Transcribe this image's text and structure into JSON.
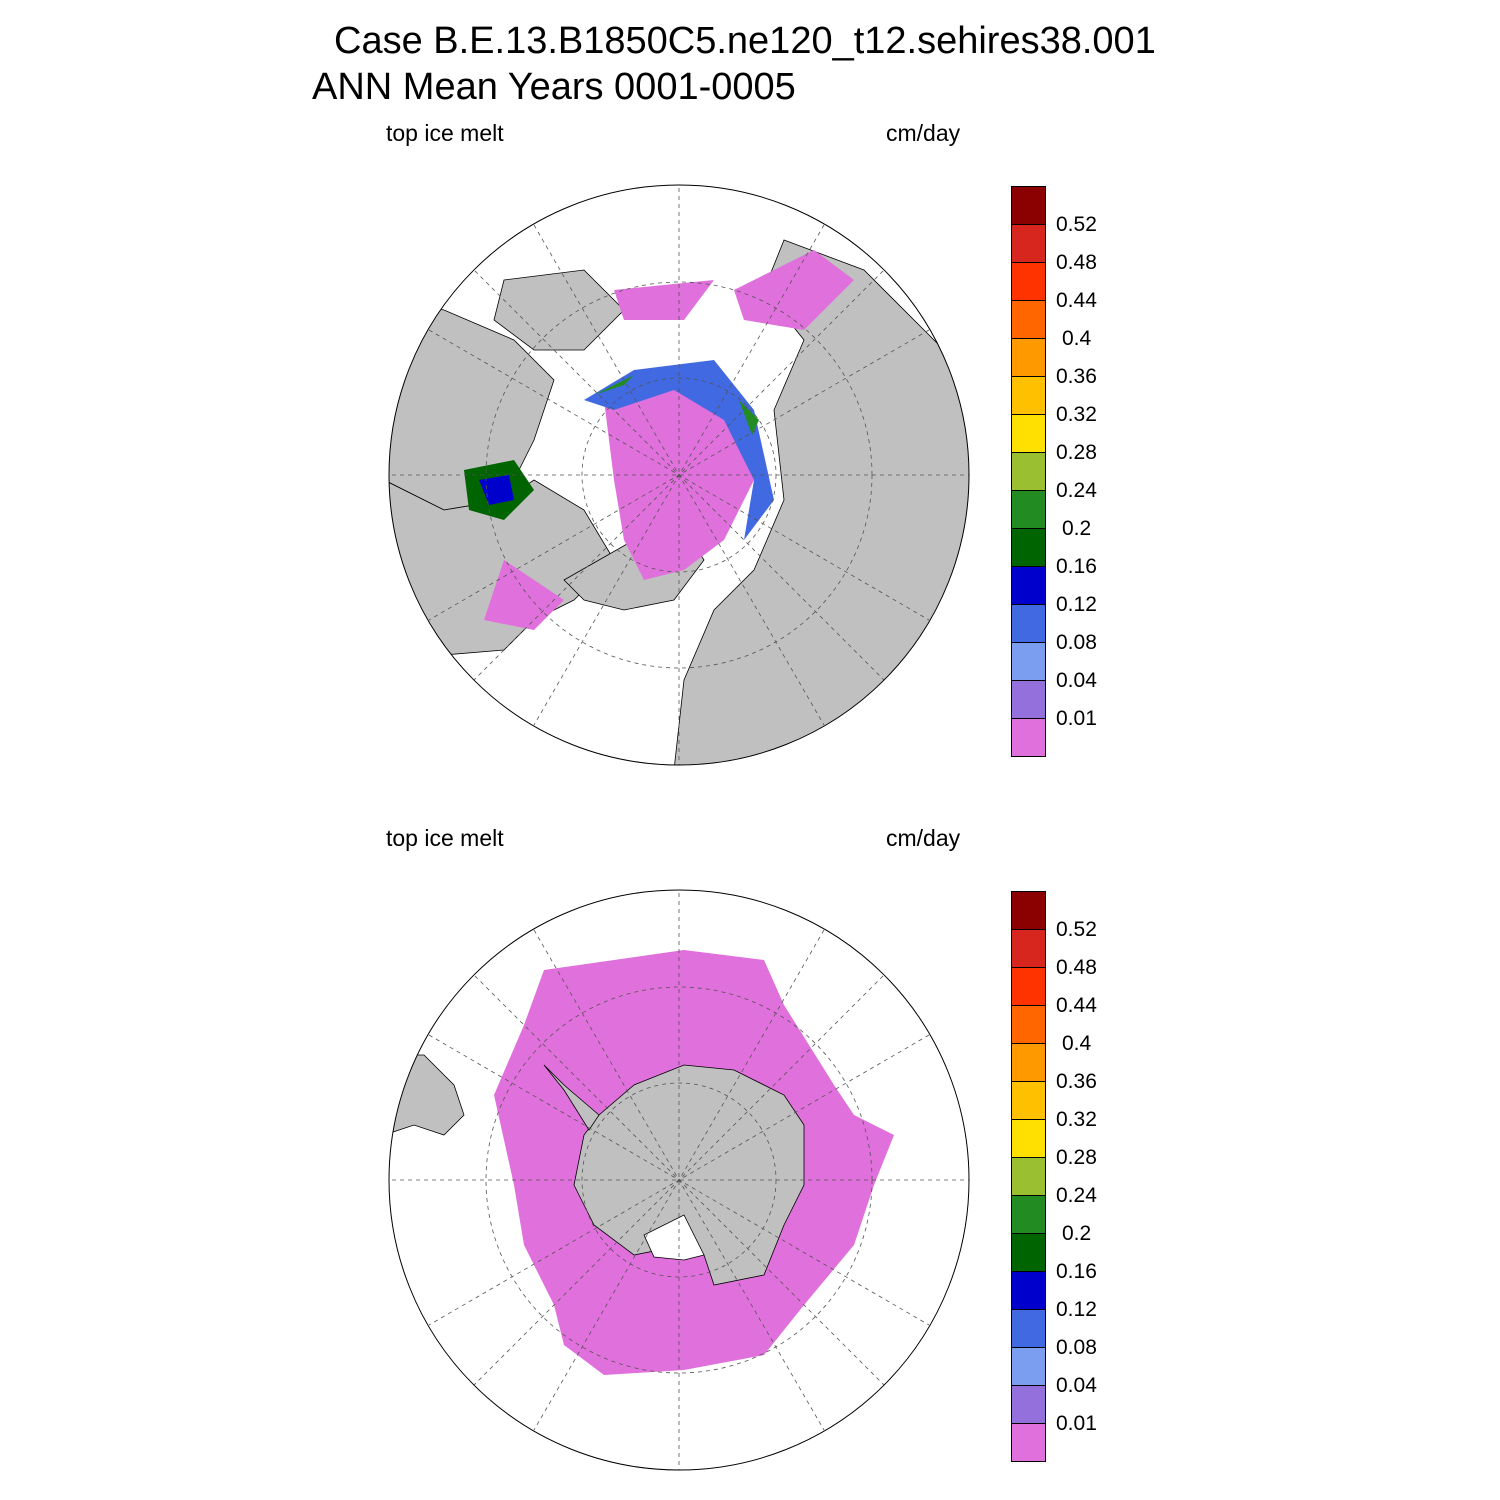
{
  "header": {
    "line1": "Case B.E.13.B1850C5.ne120_t12.sehires38.001",
    "line2": "ANN Mean     Years 0001-0005"
  },
  "panels": [
    {
      "field": "top ice melt",
      "units": "cm/day",
      "hemisphere": "north"
    },
    {
      "field": "top ice melt",
      "units": "cm/day",
      "hemisphere": "south"
    }
  ],
  "colorbar": {
    "colors": [
      "#8b0000",
      "#d7261e",
      "#ff3300",
      "#ff6600",
      "#ff9900",
      "#ffc000",
      "#ffe000",
      "#9abf30",
      "#228b22",
      "#006400",
      "#0000cd",
      "#4169e1",
      "#7b9ef0",
      "#9370db",
      "#e070db"
    ],
    "labels": [
      "0.52",
      "0.48",
      "0.44",
      "0.4",
      "0.36",
      "0.32",
      "0.28",
      "0.24",
      "0.2",
      "0.16",
      "0.12",
      "0.08",
      "0.04",
      "0.01"
    ]
  },
  "map_colors": {
    "land": "#c0c0c0",
    "ocean": "#ffffff",
    "ice_low": "#e070db"
  }
}
